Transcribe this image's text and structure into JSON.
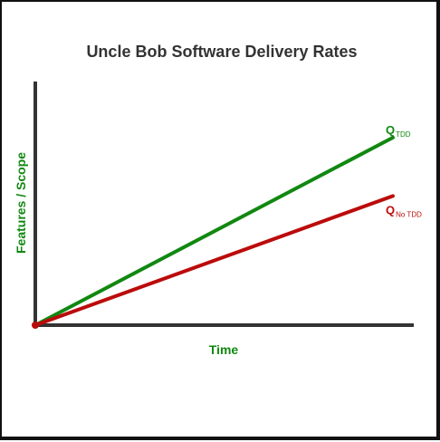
{
  "chart_data": {
    "type": "line",
    "title": "Uncle Bob Software Delivery Rates",
    "xlabel": "Time",
    "ylabel": "Features / Scope",
    "xlim": [
      0,
      100
    ],
    "ylim": [
      0,
      100
    ],
    "grid": false,
    "legend": "none",
    "series": [
      {
        "label_main": "Q",
        "label_sub": "TDD",
        "color": "#118811",
        "x": [
          0,
          100
        ],
        "y": [
          0,
          77
        ]
      },
      {
        "label_main": "Q",
        "label_sub": "No TDD",
        "color": "#bb0b0b",
        "x": [
          0,
          100
        ],
        "y": [
          0,
          53
        ]
      }
    ],
    "origin_marker_color": "#bb0b0b",
    "axis_color": "#333333",
    "axis_label_color": "#118811"
  }
}
